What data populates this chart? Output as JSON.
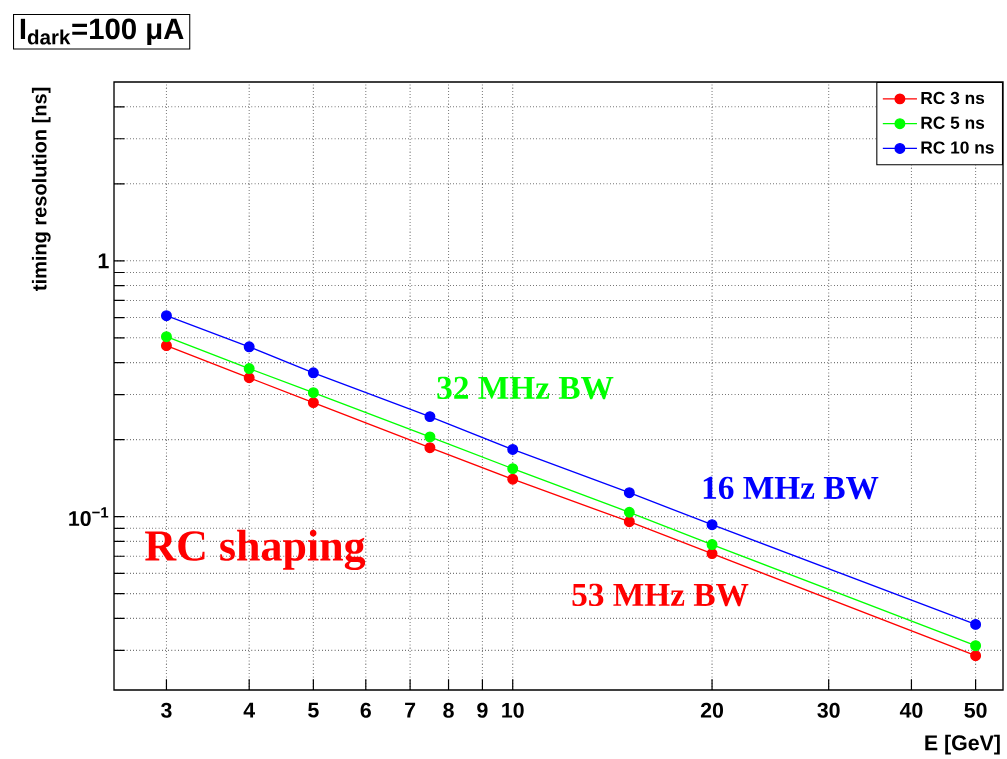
{
  "chart_data": {
    "type": "line",
    "title": "I$_{dark}$=100 μA",
    "xlabel": "E [GeV]",
    "ylabel": "timing resolution [ns]",
    "log": "xy",
    "grid": true,
    "legend": "top right",
    "marker": "circle",
    "line_style": "solid",
    "xlim": [
      2.5,
      55
    ],
    "ylim": [
      0.021,
      5
    ],
    "xticks": [
      3,
      4,
      5,
      6,
      7,
      8,
      9,
      10,
      20,
      30,
      40,
      50
    ],
    "yticks": [
      {
        "value": 0.03,
        "label": null
      },
      {
        "value": 0.04,
        "label": null
      },
      {
        "value": 0.05,
        "label": null
      },
      {
        "value": 0.06,
        "label": null
      },
      {
        "value": 0.07,
        "label": null
      },
      {
        "value": 0.08,
        "label": null
      },
      {
        "value": 0.09,
        "label": null
      },
      {
        "value": 0.1,
        "label": "10$^{−1}$"
      },
      {
        "value": 0.2,
        "label": null
      },
      {
        "value": 0.3,
        "label": null
      },
      {
        "value": 0.4,
        "label": null
      },
      {
        "value": 0.5,
        "label": null
      },
      {
        "value": 0.6,
        "label": null
      },
      {
        "value": 0.7,
        "label": null
      },
      {
        "value": 0.8,
        "label": null
      },
      {
        "value": 0.9,
        "label": null
      },
      1,
      {
        "value": 2,
        "label": null
      },
      {
        "value": 3,
        "label": null
      },
      {
        "value": 4,
        "label": null
      }
    ],
    "x": [
      3,
      4,
      5,
      7.5,
      10,
      15,
      20,
      50
    ],
    "series": [
      {
        "name": "RC  3 ns",
        "color": "#ff0000",
        "values": [
          0.466,
          0.349,
          0.279,
          0.186,
          0.14,
          0.0955,
          0.0717,
          0.0286
        ]
      },
      {
        "name": "RC  5 ns",
        "color": "#00ff00",
        "values": [
          0.505,
          0.379,
          0.305,
          0.205,
          0.154,
          0.104,
          0.0778,
          0.0313
        ]
      },
      {
        "name": "RC 10 ns",
        "color": "#0000ff",
        "values": [
          0.61,
          0.461,
          0.365,
          0.246,
          0.183,
          0.124,
          0.093,
          0.0379
        ]
      }
    ],
    "annotations": [
      "32 MHz BW",
      "16 MHz BW",
      "53 MHz BW",
      "RC shaping"
    ]
  }
}
